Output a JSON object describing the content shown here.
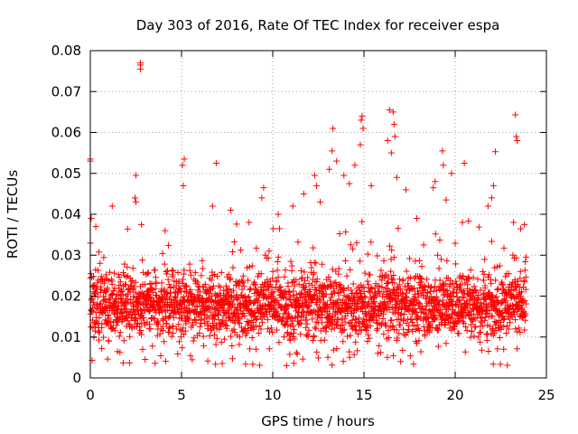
{
  "chart_data": {
    "type": "scatter",
    "title": "Day 303 of 2016, Rate Of TEC Index for receiver espa",
    "xlabel": "GPS time / hours",
    "ylabel": "ROTI / TECUs",
    "xlim": [
      0,
      25
    ],
    "ylim": [
      0,
      0.08
    ],
    "grid": true,
    "marker": "+",
    "series_color": "#ff0000",
    "x_ticks": [
      0,
      5,
      10,
      15,
      20,
      25
    ],
    "x_tick_labels": [
      "0",
      "5",
      "10",
      "15",
      "20",
      "25"
    ],
    "y_ticks": [
      0,
      0.01,
      0.02,
      0.03,
      0.04,
      0.05,
      0.06,
      0.07,
      0.08
    ],
    "y_tick_labels": [
      "0",
      "0.01",
      "0.02",
      "0.03",
      "0.04",
      "0.05",
      "0.06",
      "0.07",
      "0.08"
    ],
    "series": [
      {
        "name": "ROTI",
        "x_range": [
          0,
          23.9
        ],
        "bulk_range": [
          0.004,
          0.032
        ],
        "points": [
          [
            0.0,
            0.053
          ],
          [
            0.0,
            0.0535
          ],
          [
            0.05,
            0.039
          ],
          [
            0.3,
            0.037
          ],
          [
            1.2,
            0.042
          ],
          [
            2.5,
            0.0495
          ],
          [
            2.45,
            0.044
          ],
          [
            2.5,
            0.043
          ],
          [
            2.75,
            0.0765
          ],
          [
            2.75,
            0.077
          ],
          [
            2.75,
            0.0755
          ],
          [
            2.8,
            0.0375
          ],
          [
            4.1,
            0.036
          ],
          [
            5.05,
            0.052
          ],
          [
            5.15,
            0.0535
          ],
          [
            5.1,
            0.047
          ],
          [
            6.7,
            0.042
          ],
          [
            6.9,
            0.0525
          ],
          [
            7.7,
            0.041
          ],
          [
            8.7,
            0.038
          ],
          [
            9.5,
            0.0465
          ],
          [
            9.4,
            0.044
          ],
          [
            9.8,
            0.031
          ],
          [
            10.3,
            0.04
          ],
          [
            11.1,
            0.042
          ],
          [
            11.7,
            0.045
          ],
          [
            12.3,
            0.0495
          ],
          [
            12.4,
            0.047
          ],
          [
            12.6,
            0.043
          ],
          [
            13.1,
            0.051
          ],
          [
            13.3,
            0.061
          ],
          [
            13.25,
            0.0555
          ],
          [
            13.5,
            0.053
          ],
          [
            13.9,
            0.0495
          ],
          [
            14.2,
            0.0475
          ],
          [
            14.5,
            0.052
          ],
          [
            14.8,
            0.057
          ],
          [
            14.85,
            0.063
          ],
          [
            14.9,
            0.064
          ],
          [
            14.95,
            0.061
          ],
          [
            15.4,
            0.047
          ],
          [
            16.3,
            0.058
          ],
          [
            16.4,
            0.0655
          ],
          [
            16.6,
            0.065
          ],
          [
            16.65,
            0.062
          ],
          [
            16.7,
            0.059
          ],
          [
            16.5,
            0.055
          ],
          [
            16.8,
            0.049
          ],
          [
            17.3,
            0.046
          ],
          [
            17.9,
            0.039
          ],
          [
            18.8,
            0.0465
          ],
          [
            18.9,
            0.048
          ],
          [
            19.3,
            0.0555
          ],
          [
            19.35,
            0.052
          ],
          [
            19.5,
            0.0435
          ],
          [
            19.8,
            0.05
          ],
          [
            20.4,
            0.038
          ],
          [
            20.5,
            0.0525
          ],
          [
            21.8,
            0.042
          ],
          [
            22.0,
            0.044
          ],
          [
            22.2,
            0.0553
          ],
          [
            22.1,
            0.047
          ],
          [
            23.2,
            0.038
          ],
          [
            23.3,
            0.0643
          ],
          [
            23.35,
            0.059
          ],
          [
            23.4,
            0.058
          ],
          [
            23.8,
            0.0375
          ]
        ]
      }
    ]
  }
}
